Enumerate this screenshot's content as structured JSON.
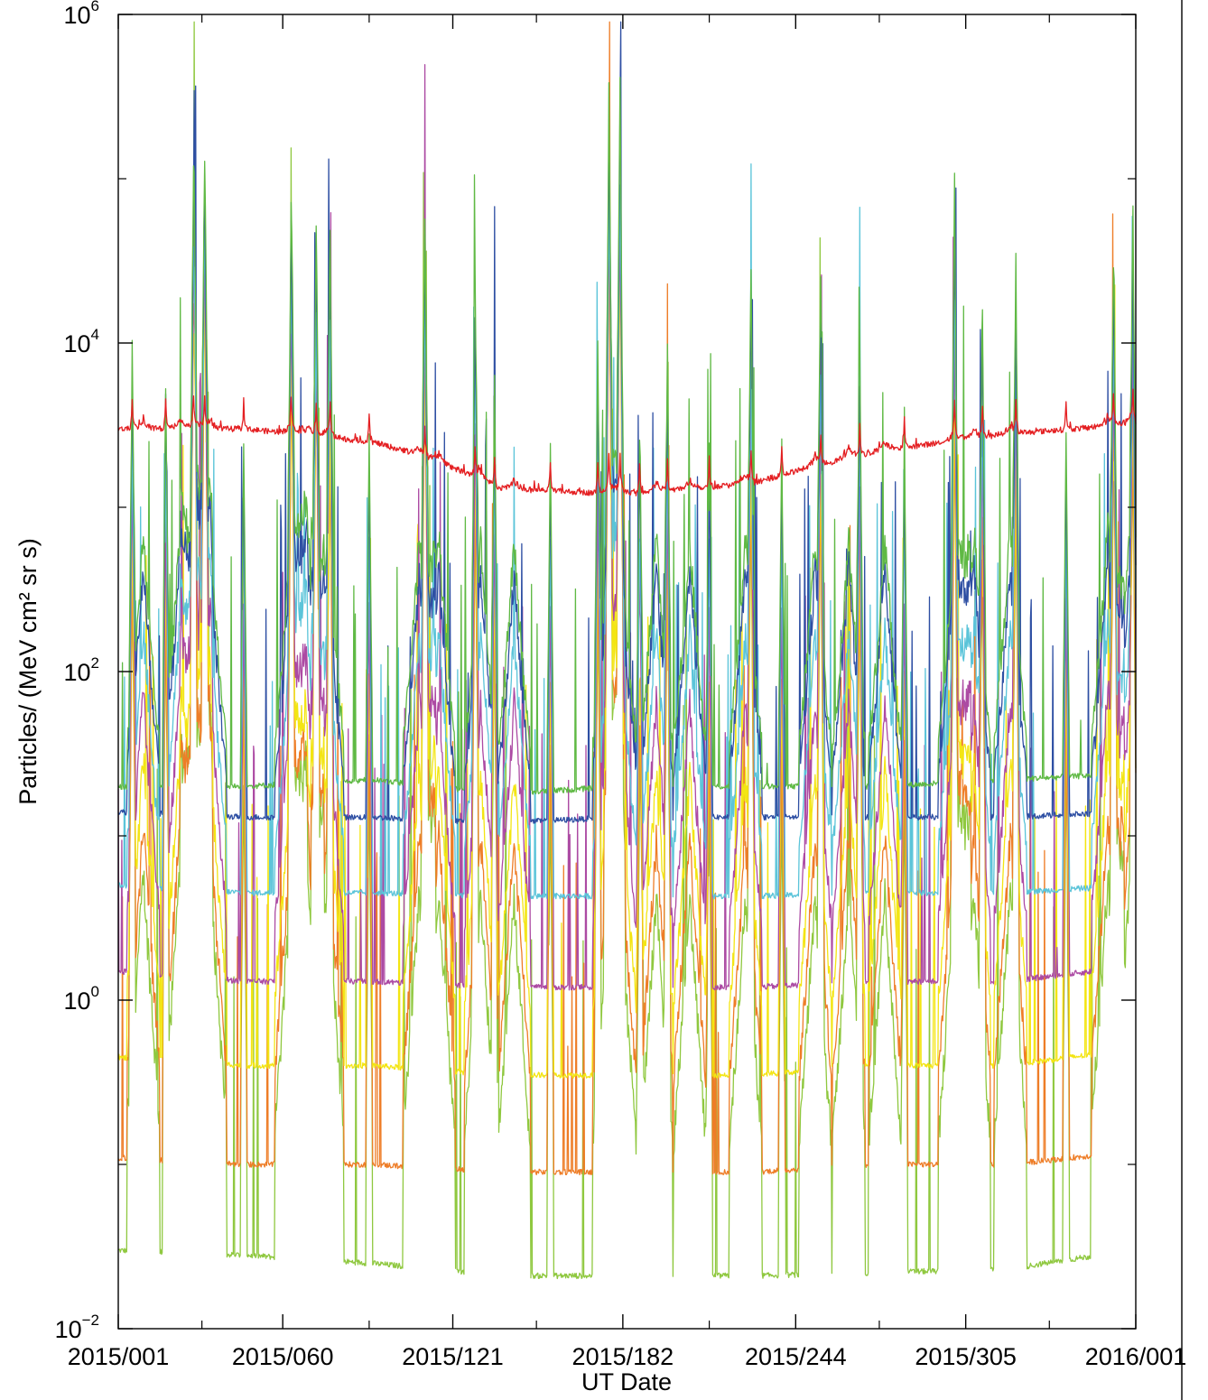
{
  "chart_data": {
    "type": "line",
    "title": "",
    "xlabel": "UT Date",
    "ylabel": "Particles/ (MeV cm² sr s)",
    "y_scale": "log",
    "ylim": [
      0.01,
      1000000
    ],
    "xlim": [
      "2015/001",
      "2016/001"
    ],
    "grid": false,
    "legend": "none",
    "x_ticks": [
      "2015/001",
      "2015/060",
      "2015/121",
      "2015/182",
      "2015/244",
      "2015/305",
      "2016/001"
    ],
    "x_minor_ticks": [
      "2015/031",
      "2015/091",
      "2015/151",
      "2015/213",
      "2015/274",
      "2015/335"
    ],
    "y_ticks": [
      {
        "base": "10",
        "exp": "6",
        "value": 1000000
      },
      {
        "base": "10",
        "exp": "4",
        "value": 10000
      },
      {
        "base": "10",
        "exp": "2",
        "value": 100
      },
      {
        "base": "10",
        "exp": "0",
        "value": 1
      },
      {
        "base": "10",
        "exp": "−2",
        "value": 0.01
      }
    ],
    "y_minor_ticks": [
      100000,
      1000,
      10,
      0.1
    ],
    "event_days": [
      9,
      22,
      28,
      33,
      62,
      68,
      75,
      108,
      115,
      130,
      142,
      176,
      180,
      193,
      205,
      225,
      250,
      262,
      275,
      300,
      307,
      320,
      355,
      363
    ],
    "peak_days": [
      5,
      17,
      27,
      31,
      45,
      62,
      71,
      76,
      90,
      110,
      128,
      135,
      155,
      172,
      176,
      180,
      187,
      197,
      212,
      227,
      238,
      252,
      266,
      282,
      300,
      310,
      322,
      340,
      357,
      364
    ],
    "series": [
      {
        "color": "#e41f22",
        "base": [
          3000,
          3000,
          2500,
          1300,
          1200,
          1400,
          2200,
          2800,
          3200
        ],
        "amp": 10
      },
      {
        "color": "#5fb944",
        "base": [
          20,
          20,
          22,
          18,
          20,
          20,
          20,
          22,
          24
        ],
        "amp": 2500
      },
      {
        "color": "#2e4fa3",
        "base": [
          14,
          13,
          13,
          12,
          13,
          13,
          13,
          13,
          14
        ],
        "amp": 2500
      },
      {
        "color": "#5bc4d9",
        "base": [
          5,
          4.5,
          4.5,
          4.3,
          4.3,
          4.3,
          4.5,
          4.5,
          5
        ],
        "amp": 3000
      },
      {
        "color": "#ac4aa3",
        "base": [
          1.5,
          1.3,
          1.3,
          1.2,
          1.2,
          1.2,
          1.3,
          1.3,
          1.6
        ],
        "amp": 4000
      },
      {
        "color": "#f3e513",
        "base": [
          0.45,
          0.4,
          0.4,
          0.35,
          0.35,
          0.35,
          0.4,
          0.4,
          0.5
        ],
        "amp": 5000
      },
      {
        "color": "#ee7d27",
        "base": [
          0.11,
          0.1,
          0.1,
          0.09,
          0.09,
          0.09,
          0.1,
          0.1,
          0.12
        ],
        "amp": 8000
      },
      {
        "color": "#8fc83f",
        "base": [
          0.03,
          0.028,
          0.025,
          0.021,
          0.021,
          0.021,
          0.022,
          0.023,
          0.03
        ],
        "amp": 15000
      }
    ]
  }
}
